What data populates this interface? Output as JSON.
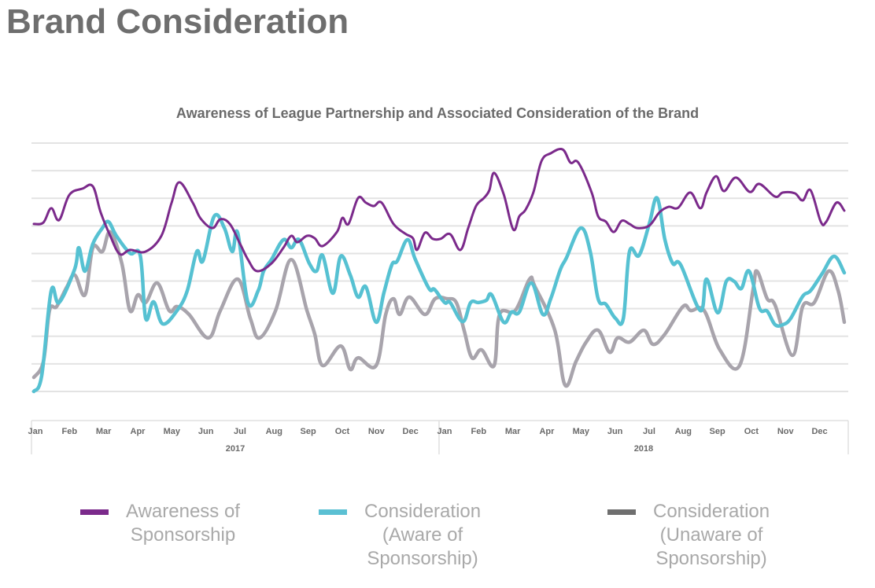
{
  "page": {
    "title": "Brand Consideration"
  },
  "chart_data": {
    "type": "line",
    "title": "Awareness of League Partnership and Associated Consideration of the Brand",
    "xlabel": "",
    "ylabel": "",
    "x_units": "months since Jan 2017",
    "y_units": "relative index (gridline steps, unlabeled axis)",
    "ylim": [
      0,
      9
    ],
    "xlim": [
      0,
      23.77
    ],
    "grid": true,
    "y_tick_labels_shown": false,
    "x_ticks": [
      {
        "label": "Jan",
        "month": 0
      },
      {
        "label": "Feb",
        "month": 1
      },
      {
        "label": "Mar",
        "month": 2
      },
      {
        "label": "Apr",
        "month": 3
      },
      {
        "label": "May",
        "month": 4
      },
      {
        "label": "Jun",
        "month": 5
      },
      {
        "label": "Jul",
        "month": 6
      },
      {
        "label": "Aug",
        "month": 7
      },
      {
        "label": "Sep",
        "month": 8
      },
      {
        "label": "Oct",
        "month": 9
      },
      {
        "label": "Nov",
        "month": 10
      },
      {
        "label": "Dec",
        "month": 11
      },
      {
        "label": "Jan",
        "month": 12
      },
      {
        "label": "Feb",
        "month": 13
      },
      {
        "label": "Mar",
        "month": 14
      },
      {
        "label": "Apr",
        "month": 15
      },
      {
        "label": "May",
        "month": 16
      },
      {
        "label": "Jun",
        "month": 17
      },
      {
        "label": "Jul",
        "month": 18
      },
      {
        "label": "Aug",
        "month": 19
      },
      {
        "label": "Sep",
        "month": 20
      },
      {
        "label": "Oct",
        "month": 21
      },
      {
        "label": "Nov",
        "month": 22
      },
      {
        "label": "Dec",
        "month": 23
      }
    ],
    "x_groups": [
      {
        "label": "2017",
        "start_month": 0,
        "end_month": 12
      },
      {
        "label": "2018",
        "start_month": 12,
        "end_month": 24
      }
    ],
    "legend_position": "bottom",
    "series": [
      {
        "name": "Awareness of Sponsorship",
        "legend_lines": [
          "Awareness of",
          "Sponsorship"
        ],
        "color": "#7b2a8b",
        "legend_color": "#7b2a8b",
        "points": [
          [
            0,
            6.07
          ],
          [
            0.28,
            6.12
          ],
          [
            0.51,
            6.64
          ],
          [
            0.74,
            6.21
          ],
          [
            1.04,
            7.12
          ],
          [
            1.43,
            7.35
          ],
          [
            1.73,
            7.43
          ],
          [
            1.96,
            6.49
          ],
          [
            2.24,
            5.64
          ],
          [
            2.52,
            4.98
          ],
          [
            2.82,
            5.13
          ],
          [
            3.28,
            5.07
          ],
          [
            3.74,
            5.64
          ],
          [
            4.04,
            6.84
          ],
          [
            4.27,
            7.58
          ],
          [
            4.66,
            6.84
          ],
          [
            4.89,
            6.27
          ],
          [
            5.24,
            5.92
          ],
          [
            5.47,
            6.24
          ],
          [
            5.75,
            6.07
          ],
          [
            6.05,
            5.35
          ],
          [
            6.28,
            4.78
          ],
          [
            6.55,
            4.36
          ],
          [
            6.97,
            4.64
          ],
          [
            7.32,
            5.21
          ],
          [
            7.55,
            5.64
          ],
          [
            7.73,
            5.41
          ],
          [
            8.01,
            5.64
          ],
          [
            8.24,
            5.55
          ],
          [
            8.47,
            5.27
          ],
          [
            8.89,
            5.78
          ],
          [
            9.05,
            6.29
          ],
          [
            9.23,
            6.07
          ],
          [
            9.51,
            7.01
          ],
          [
            9.74,
            6.84
          ],
          [
            9.97,
            6.72
          ],
          [
            10.2,
            6.84
          ],
          [
            10.55,
            6.07
          ],
          [
            10.89,
            5.72
          ],
          [
            11.12,
            5.55
          ],
          [
            11.24,
            5.13
          ],
          [
            11.47,
            5.75
          ],
          [
            11.7,
            5.53
          ],
          [
            11.93,
            5.53
          ],
          [
            12.21,
            5.7
          ],
          [
            12.51,
            5.13
          ],
          [
            12.74,
            5.92
          ],
          [
            12.97,
            6.72
          ],
          [
            13.2,
            7.01
          ],
          [
            13.36,
            7.29
          ],
          [
            13.5,
            7.92
          ],
          [
            13.78,
            7.15
          ],
          [
            14.06,
            5.87
          ],
          [
            14.24,
            6.35
          ],
          [
            14.42,
            6.58
          ],
          [
            14.65,
            7.21
          ],
          [
            14.89,
            8.35
          ],
          [
            15.16,
            8.63
          ],
          [
            15.51,
            8.77
          ],
          [
            15.74,
            8.29
          ],
          [
            15.97,
            8.29
          ],
          [
            16.36,
            7.21
          ],
          [
            16.55,
            6.35
          ],
          [
            16.78,
            6.15
          ],
          [
            17.01,
            5.78
          ],
          [
            17.24,
            6.18
          ],
          [
            17.47,
            6.07
          ],
          [
            17.7,
            5.92
          ],
          [
            18.05,
            6.01
          ],
          [
            18.35,
            6.49
          ],
          [
            18.62,
            6.69
          ],
          [
            18.9,
            6.66
          ],
          [
            19.25,
            7.21
          ],
          [
            19.55,
            6.64
          ],
          [
            19.73,
            7.21
          ],
          [
            20.01,
            7.8
          ],
          [
            20.24,
            7.26
          ],
          [
            20.59,
            7.75
          ],
          [
            21.0,
            7.23
          ],
          [
            21.28,
            7.52
          ],
          [
            21.74,
            7.06
          ],
          [
            21.97,
            7.21
          ],
          [
            22.32,
            7.18
          ],
          [
            22.55,
            6.92
          ],
          [
            22.78,
            7.29
          ],
          [
            23.08,
            6.15
          ],
          [
            23.24,
            6.15
          ],
          [
            23.54,
            6.84
          ],
          [
            23.77,
            6.55
          ]
        ]
      },
      {
        "name": "Consideration (Aware of Sponsorship)",
        "legend_lines": [
          "Consideration",
          "(Aware of",
          "Sponsorship)"
        ],
        "color": "#56c1d2",
        "legend_color": "#5bc0d3",
        "points": [
          [
            0,
            0.0
          ],
          [
            0.23,
            0.57
          ],
          [
            0.51,
            3.65
          ],
          [
            0.74,
            3.22
          ],
          [
            1.2,
            4.44
          ],
          [
            1.32,
            5.21
          ],
          [
            1.5,
            4.36
          ],
          [
            1.73,
            5.35
          ],
          [
            2.01,
            5.92
          ],
          [
            2.19,
            6.15
          ],
          [
            2.42,
            5.64
          ],
          [
            2.82,
            5.01
          ],
          [
            3.12,
            4.93
          ],
          [
            3.28,
            2.65
          ],
          [
            3.51,
            3.25
          ],
          [
            3.78,
            2.45
          ],
          [
            4.2,
            2.93
          ],
          [
            4.5,
            3.65
          ],
          [
            4.78,
            5.07
          ],
          [
            4.96,
            4.73
          ],
          [
            5.29,
            6.35
          ],
          [
            5.59,
            5.92
          ],
          [
            5.82,
            5.07
          ],
          [
            5.98,
            5.75
          ],
          [
            6.28,
            3.22
          ],
          [
            6.58,
            3.65
          ],
          [
            6.74,
            4.36
          ],
          [
            6.97,
            4.78
          ],
          [
            7.32,
            5.5
          ],
          [
            7.55,
            5.21
          ],
          [
            7.78,
            5.5
          ],
          [
            8.08,
            4.64
          ],
          [
            8.29,
            4.36
          ],
          [
            8.47,
            4.93
          ],
          [
            8.77,
            3.56
          ],
          [
            9.0,
            4.9
          ],
          [
            9.28,
            4.22
          ],
          [
            9.51,
            3.42
          ],
          [
            9.74,
            3.79
          ],
          [
            10.04,
            2.51
          ],
          [
            10.27,
            3.59
          ],
          [
            10.5,
            4.59
          ],
          [
            10.66,
            4.73
          ],
          [
            10.96,
            5.5
          ],
          [
            11.19,
            4.78
          ],
          [
            11.59,
            3.73
          ],
          [
            11.75,
            3.7
          ],
          [
            12.05,
            3.22
          ],
          [
            12.21,
            3.22
          ],
          [
            12.58,
            2.53
          ],
          [
            12.81,
            3.22
          ],
          [
            13.04,
            3.22
          ],
          [
            13.27,
            3.3
          ],
          [
            13.43,
            3.5
          ],
          [
            13.78,
            2.51
          ],
          [
            14.01,
            2.88
          ],
          [
            14.24,
            2.88
          ],
          [
            14.59,
            3.93
          ],
          [
            14.93,
            2.79
          ],
          [
            15.16,
            3.36
          ],
          [
            15.44,
            4.41
          ],
          [
            15.62,
            4.84
          ],
          [
            16.04,
            5.92
          ],
          [
            16.32,
            5.07
          ],
          [
            16.55,
            3.36
          ],
          [
            16.78,
            3.16
          ],
          [
            17.06,
            2.65
          ],
          [
            17.29,
            2.65
          ],
          [
            17.47,
            5.07
          ],
          [
            17.75,
            4.93
          ],
          [
            18.05,
            6.07
          ],
          [
            18.28,
            7.01
          ],
          [
            18.51,
            5.5
          ],
          [
            18.74,
            4.64
          ],
          [
            18.97,
            4.59
          ],
          [
            19.55,
            2.93
          ],
          [
            19.73,
            4.07
          ],
          [
            20.06,
            2.85
          ],
          [
            20.31,
            3.99
          ],
          [
            20.54,
            3.99
          ],
          [
            20.75,
            3.73
          ],
          [
            20.98,
            4.36
          ],
          [
            21.28,
            3.02
          ],
          [
            21.51,
            2.91
          ],
          [
            21.74,
            2.42
          ],
          [
            21.97,
            2.42
          ],
          [
            22.2,
            2.65
          ],
          [
            22.55,
            3.45
          ],
          [
            22.78,
            3.65
          ],
          [
            23.12,
            4.27
          ],
          [
            23.47,
            4.9
          ],
          [
            23.77,
            4.3
          ]
        ]
      },
      {
        "name": "Consideration (Unaware of Sponsorship)",
        "legend_lines": [
          "Consideration",
          "(Unaware of",
          "Sponsorship)"
        ],
        "color": "#a8a4ac",
        "legend_color": "#6f6f6f",
        "points": [
          [
            0,
            0.51
          ],
          [
            0.28,
            1.08
          ],
          [
            0.46,
            2.93
          ],
          [
            0.67,
            3.08
          ],
          [
            0.97,
            3.79
          ],
          [
            1.2,
            4.22
          ],
          [
            1.5,
            3.5
          ],
          [
            1.73,
            5.21
          ],
          [
            2.01,
            5.07
          ],
          [
            2.24,
            5.78
          ],
          [
            2.58,
            4.64
          ],
          [
            2.82,
            2.93
          ],
          [
            3.05,
            3.5
          ],
          [
            3.28,
            3.22
          ],
          [
            3.62,
            3.93
          ],
          [
            3.97,
            2.93
          ],
          [
            4.2,
            3.08
          ],
          [
            4.55,
            2.79
          ],
          [
            5.12,
            1.94
          ],
          [
            5.47,
            2.93
          ],
          [
            5.98,
            4.07
          ],
          [
            6.35,
            2.65
          ],
          [
            6.62,
            1.94
          ],
          [
            7.09,
            2.93
          ],
          [
            7.55,
            4.78
          ],
          [
            8.01,
            2.93
          ],
          [
            8.24,
            2.08
          ],
          [
            8.47,
            0.94
          ],
          [
            9.0,
            1.65
          ],
          [
            9.28,
            0.8
          ],
          [
            9.51,
            1.22
          ],
          [
            10.04,
            0.94
          ],
          [
            10.32,
            2.79
          ],
          [
            10.55,
            3.36
          ],
          [
            10.73,
            2.79
          ],
          [
            11.01,
            3.42
          ],
          [
            11.47,
            2.79
          ],
          [
            11.77,
            3.36
          ],
          [
            12.12,
            3.36
          ],
          [
            12.39,
            3.22
          ],
          [
            12.62,
            2.22
          ],
          [
            12.85,
            1.22
          ],
          [
            13.13,
            1.51
          ],
          [
            13.5,
            0.94
          ],
          [
            13.66,
            2.79
          ],
          [
            14.12,
            2.93
          ],
          [
            14.54,
            4.07
          ],
          [
            14.7,
            3.79
          ],
          [
            15.28,
            2.22
          ],
          [
            15.58,
            0.23
          ],
          [
            15.9,
            1.08
          ],
          [
            16.2,
            1.79
          ],
          [
            16.55,
            2.22
          ],
          [
            16.89,
            1.42
          ],
          [
            17.12,
            1.94
          ],
          [
            17.47,
            1.79
          ],
          [
            17.89,
            2.22
          ],
          [
            18.16,
            1.71
          ],
          [
            18.51,
            2.08
          ],
          [
            19.04,
            3.08
          ],
          [
            19.27,
            2.93
          ],
          [
            19.66,
            2.93
          ],
          [
            20.12,
            1.51
          ],
          [
            20.7,
            0.94
          ],
          [
            21.09,
            3.65
          ],
          [
            21.21,
            4.36
          ],
          [
            21.51,
            3.36
          ],
          [
            21.74,
            3.13
          ],
          [
            22.25,
            1.31
          ],
          [
            22.55,
            3.08
          ],
          [
            22.89,
            3.22
          ],
          [
            23.31,
            4.36
          ],
          [
            23.59,
            3.65
          ],
          [
            23.77,
            2.51
          ]
        ]
      }
    ]
  }
}
